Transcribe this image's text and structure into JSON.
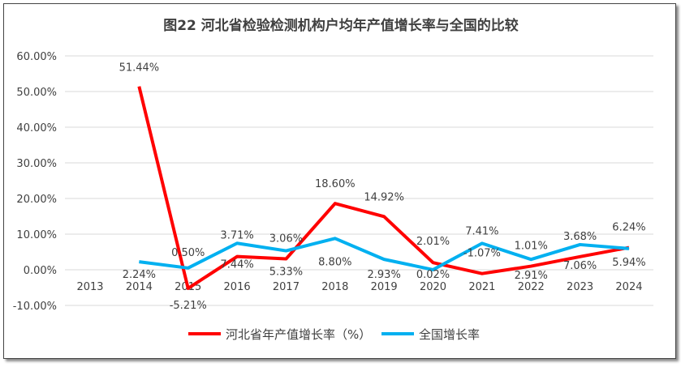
{
  "chart_data": {
    "type": "line",
    "title": "图22  河北省检验检测机构户均年产值增长率与全国的比较",
    "categories": [
      "2013",
      "2014",
      "2015",
      "2016",
      "2017",
      "2018",
      "2019",
      "2020",
      "2021",
      "2022",
      "2023",
      "2024"
    ],
    "ylim": [
      -10,
      60
    ],
    "yticks": [
      "-10.00%",
      "0.00%",
      "10.00%",
      "20.00%",
      "30.00%",
      "40.00%",
      "50.00%",
      "60.00%"
    ],
    "grid": true,
    "legend_position": "bottom",
    "series": [
      {
        "name": "河北省年产值增长率（%）",
        "color": "#ff0000",
        "values": [
          null,
          51.44,
          -5.21,
          3.71,
          3.06,
          18.6,
          14.92,
          2.01,
          -1.07,
          1.01,
          3.68,
          6.24
        ],
        "labels": [
          "",
          "51.44%",
          "-5.21%",
          "3.71%",
          "3.06%",
          "18.60%",
          "14.92%",
          "2.01%",
          "-1.07%",
          "1.01%",
          "3.68%",
          "6.24%"
        ]
      },
      {
        "name": "全国增长率",
        "color": "#00b0f0",
        "values": [
          null,
          2.24,
          0.5,
          7.44,
          5.33,
          8.8,
          2.93,
          0.02,
          7.41,
          2.91,
          7.06,
          5.94
        ],
        "labels": [
          "",
          "2.24%",
          "0.50%",
          "7.44%",
          "5.33%",
          "8.80%",
          "2.93%",
          "0.02%",
          "7.41%",
          "2.91%",
          "7.06%",
          "5.94%"
        ]
      }
    ]
  }
}
